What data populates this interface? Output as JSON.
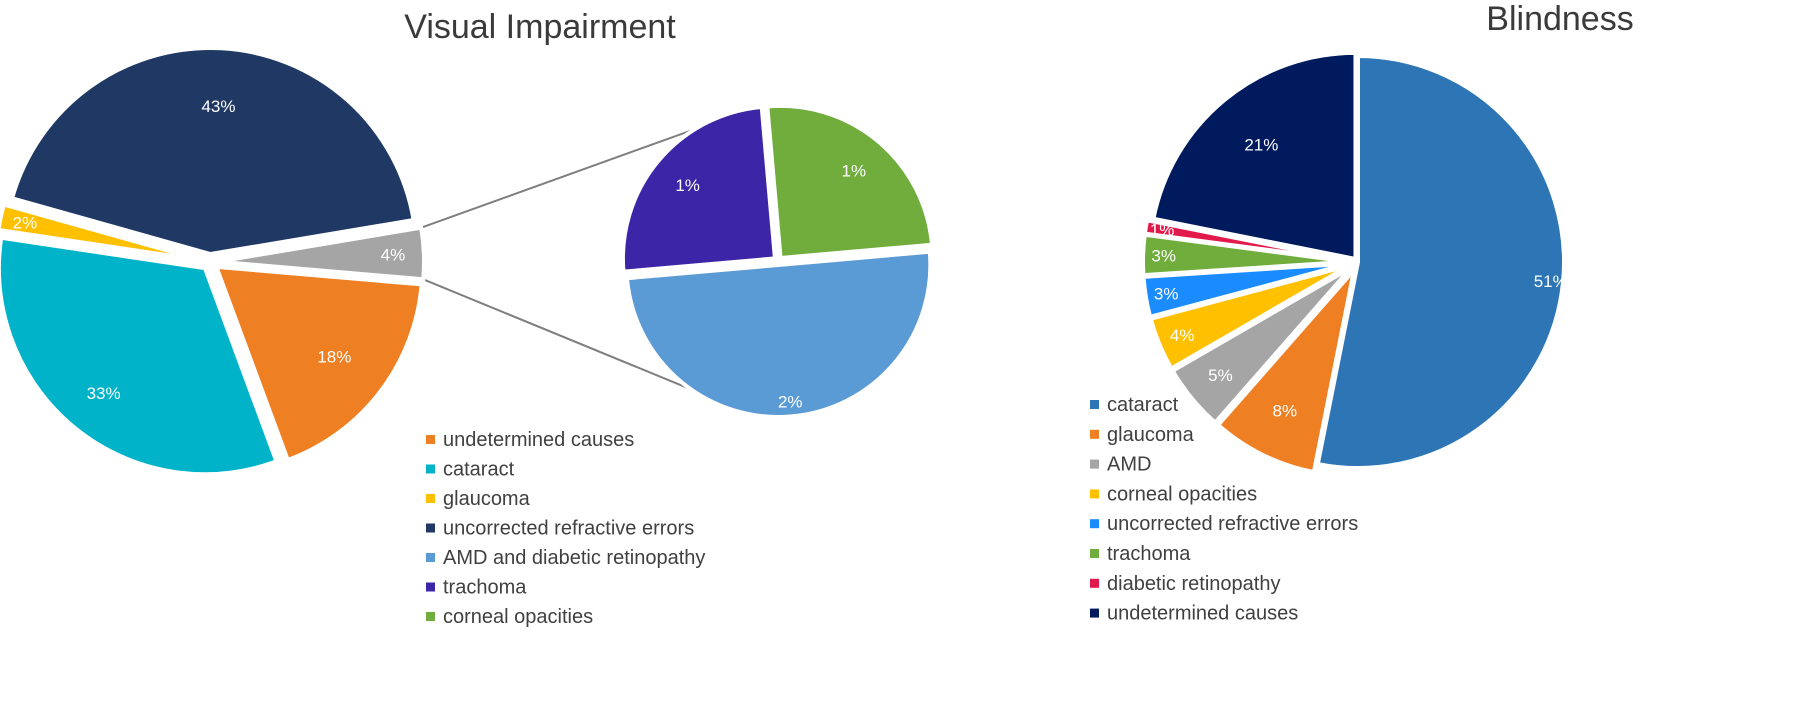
{
  "chart_data": [
    {
      "type": "pie",
      "title": "Visual Impairment",
      "slices": [
        {
          "label": "undetermined causes",
          "value": 18,
          "display": "18%",
          "color": "#ee7f22"
        },
        {
          "label": "cataract",
          "value": 33,
          "display": "33%",
          "color": "#00b3c8"
        },
        {
          "label": "glaucoma",
          "value": 2,
          "display": "2%",
          "color": "#ffc000"
        },
        {
          "label": "uncorrected refractive errors",
          "value": 43,
          "display": "43%",
          "color": "#203864"
        },
        {
          "label": "AMD and diabetic retinopathy, trachoma, corneal opacities",
          "value": 4,
          "display": "4%",
          "color": "#a5a5a5"
        }
      ],
      "breakout": {
        "type": "pie",
        "of_slice": "4%",
        "slices": [
          {
            "label": "AMD and diabetic retinopathy",
            "value": 2,
            "display": "2%",
            "color": "#5b9bd5"
          },
          {
            "label": "trachoma",
            "value": 1,
            "display": "1%",
            "color": "#3c25a6"
          },
          {
            "label": "corneal opacities",
            "value": 1,
            "display": "1%",
            "color": "#70ad3c"
          }
        ]
      },
      "legend": [
        {
          "label": "undetermined causes",
          "color": "#ee7f22"
        },
        {
          "label": "cataract",
          "color": "#00b3c8"
        },
        {
          "label": "glaucoma",
          "color": "#ffc000"
        },
        {
          "label": "uncorrected refractive errors",
          "color": "#203864"
        },
        {
          "label": "AMD and diabetic retinopathy",
          "color": "#5b9bd5"
        },
        {
          "label": "trachoma",
          "color": "#3c25a6"
        },
        {
          "label": "corneal opacities",
          "color": "#70ad3c"
        }
      ],
      "legend_placement": "bottom-center"
    },
    {
      "type": "pie",
      "title": "Blindness",
      "slices": [
        {
          "label": "cataract",
          "value": 51,
          "display": "51%",
          "color": "#2e75b6"
        },
        {
          "label": "glaucoma",
          "value": 8,
          "display": "8%",
          "color": "#ee7f22"
        },
        {
          "label": "AMD",
          "value": 5,
          "display": "5%",
          "color": "#a5a5a5"
        },
        {
          "label": "corneal opacities",
          "value": 4,
          "display": "4%",
          "color": "#ffc000"
        },
        {
          "label": "uncorrected refractive errors",
          "value": 3,
          "display": "3%",
          "color": "#1a8cff"
        },
        {
          "label": "trachoma",
          "value": 3,
          "display": "3%",
          "color": "#70ad3c"
        },
        {
          "label": "diabetic retinopathy",
          "value": 1,
          "display": "1%",
          "color": "#e2194b"
        },
        {
          "label": "undetermined causes",
          "value": 21,
          "display": "21%",
          "color": "#001a5e"
        }
      ],
      "legend": [
        {
          "label": "cataract",
          "color": "#2e75b6"
        },
        {
          "label": "glaucoma",
          "color": "#ee7f22"
        },
        {
          "label": "AMD",
          "color": "#a5a5a5"
        },
        {
          "label": "corneal opacities",
          "color": "#ffc000"
        },
        {
          "label": "uncorrected refractive errors",
          "color": "#1a8cff"
        },
        {
          "label": "trachoma",
          "color": "#70ad3c"
        },
        {
          "label": "diabetic retinopathy",
          "color": "#e2194b"
        },
        {
          "label": "undetermined causes",
          "color": "#001a5e"
        }
      ],
      "legend_placement": "bottom-left"
    }
  ]
}
